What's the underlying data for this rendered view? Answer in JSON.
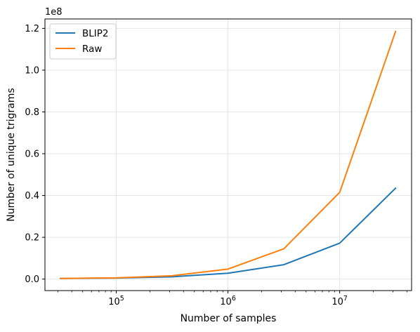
{
  "chart_data": {
    "type": "line",
    "xscale": "log",
    "x": [
      31623,
      100000,
      316228,
      1000000,
      3162278,
      10000000,
      31622777
    ],
    "x_tick_labels": [
      {
        "value": 100000,
        "base": "10",
        "exp": "5"
      },
      {
        "value": 1000000,
        "base": "10",
        "exp": "6"
      },
      {
        "value": 10000000,
        "base": "10",
        "exp": "7"
      }
    ],
    "series": [
      {
        "name": "BLIP2",
        "color": "#1f77b4",
        "values": [
          300000,
          500000,
          1100000,
          2800000,
          6900000,
          17200000,
          43500000
        ]
      },
      {
        "name": "Raw",
        "color": "#ff7f0e",
        "values": [
          300000,
          600000,
          1600000,
          4800000,
          14500000,
          41500000,
          118500000
        ]
      }
    ],
    "y_ticks": [
      0,
      20000000,
      40000000,
      60000000,
      80000000,
      100000000,
      120000000
    ],
    "y_tick_labels": [
      "0.0",
      "0.2",
      "0.4",
      "0.6",
      "0.8",
      "1.0",
      "1.2"
    ],
    "y_scale_label": "1e8",
    "xlabel": "Number of samples",
    "ylabel": "Number of unique trigrams",
    "xlim": [
      23000,
      44000000
    ],
    "ylim": [
      -5500000,
      124500000
    ],
    "grid": true,
    "legend_position": "top-left"
  }
}
